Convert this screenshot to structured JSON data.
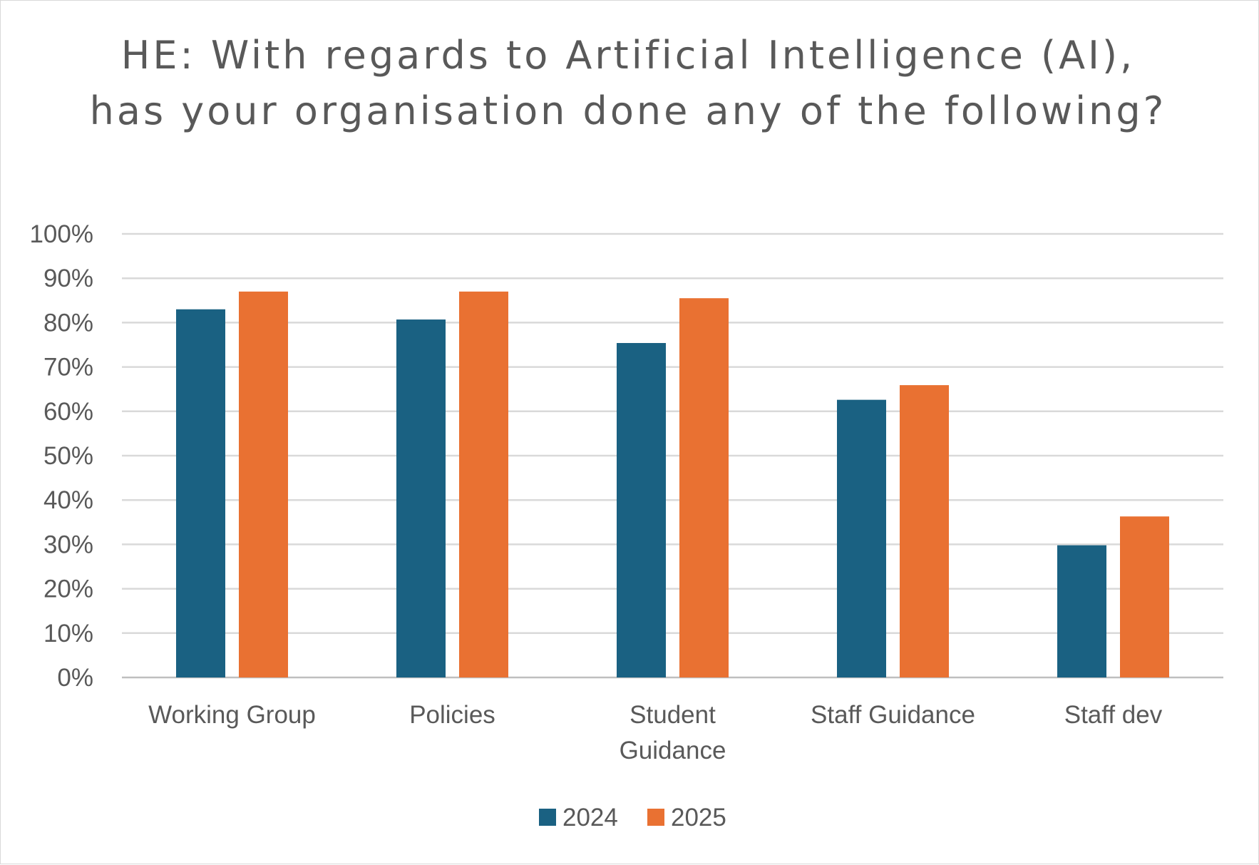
{
  "chart_data": {
    "type": "bar",
    "title": "HE: With regards to Artificial Intelligence (AI), has your organisation done any of the following?",
    "categories": [
      "Working Group",
      "Policies",
      "Student Guidance",
      "Staff Guidance",
      "Staff dev"
    ],
    "category_lines": [
      [
        "Working Group"
      ],
      [
        "Policies"
      ],
      [
        "Student",
        "Guidance"
      ],
      [
        "Staff Guidance"
      ],
      [
        "Staff dev"
      ]
    ],
    "series": [
      {
        "name": "2024",
        "color": "#1a6182",
        "values": [
          83,
          80.7,
          75.4,
          62.6,
          29.8
        ]
      },
      {
        "name": "2025",
        "color": "#e97132",
        "values": [
          87,
          87,
          85.5,
          65.9,
          36.3
        ]
      }
    ],
    "ylim": [
      0,
      100
    ],
    "yticks": [
      "0%",
      "10%",
      "20%",
      "30%",
      "40%",
      "50%",
      "60%",
      "70%",
      "80%",
      "90%",
      "100%"
    ],
    "grid": true,
    "legend": "bottom",
    "xlabel": "",
    "ylabel": ""
  }
}
